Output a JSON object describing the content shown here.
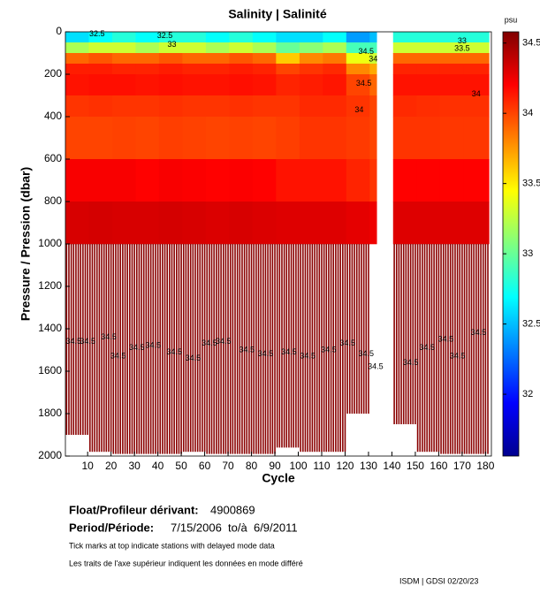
{
  "chart_data": {
    "type": "section",
    "title": "Salinity | Salinité",
    "xlabel": "Cycle",
    "ylabel": "Pressure / Pression (dbar)",
    "colorbar_label": "psu",
    "xlim": [
      0.5,
      182.5
    ],
    "xticks": [
      10,
      20,
      30,
      40,
      50,
      60,
      70,
      80,
      90,
      100,
      110,
      120,
      130,
      140,
      150,
      160,
      170,
      180
    ],
    "ylim": [
      0,
      2000
    ],
    "yticks": [
      0,
      200,
      400,
      600,
      800,
      1000,
      1200,
      1400,
      1600,
      1800,
      2000
    ],
    "clim": [
      31.56,
      34.58
    ],
    "cticks": [
      32,
      32.5,
      33,
      33.5,
      34,
      34.5
    ],
    "colormap": "jet",
    "deep_salinity": 34.55,
    "pressure_edges": [
      0,
      50,
      100,
      150,
      200,
      300,
      400,
      600,
      800,
      1000
    ],
    "columns": [
      {
        "cycles": [
          1,
          10
        ],
        "salinity": [
          32.6,
          33.2,
          33.9,
          34.12,
          34.15,
          34.05,
          34.0,
          34.22,
          34.32
        ],
        "max_pressure": 1900
      },
      {
        "cycles": [
          11,
          20
        ],
        "salinity": [
          32.7,
          33.3,
          33.95,
          34.12,
          34.16,
          34.06,
          34.0,
          34.22,
          34.33
        ],
        "max_pressure": 1980
      },
      {
        "cycles": [
          21,
          30
        ],
        "salinity": [
          32.8,
          33.3,
          33.9,
          34.1,
          34.16,
          34.05,
          34.01,
          34.22,
          34.32
        ],
        "max_pressure": 1990
      },
      {
        "cycles": [
          31,
          40
        ],
        "salinity": [
          32.7,
          33.2,
          33.9,
          34.1,
          34.15,
          34.05,
          34.0,
          34.2,
          34.32
        ],
        "max_pressure": 1990
      },
      {
        "cycles": [
          41,
          50
        ],
        "salinity": [
          32.8,
          33.3,
          33.95,
          34.12,
          34.16,
          34.06,
          34.02,
          34.22,
          34.33
        ],
        "max_pressure": 1990
      },
      {
        "cycles": [
          51,
          60
        ],
        "salinity": [
          32.8,
          33.3,
          33.9,
          34.1,
          34.15,
          34.05,
          34.01,
          34.21,
          34.32
        ],
        "max_pressure": 1980
      },
      {
        "cycles": [
          61,
          70
        ],
        "salinity": [
          32.7,
          33.2,
          33.9,
          34.1,
          34.15,
          34.05,
          34.0,
          34.2,
          34.31
        ],
        "max_pressure": 1990
      },
      {
        "cycles": [
          71,
          80
        ],
        "salinity": [
          32.8,
          33.3,
          33.95,
          34.12,
          34.16,
          34.06,
          34.01,
          34.21,
          34.32
        ],
        "max_pressure": 1990
      },
      {
        "cycles": [
          81,
          90
        ],
        "salinity": [
          32.7,
          33.2,
          33.9,
          34.1,
          34.15,
          34.05,
          34.0,
          34.2,
          34.31
        ],
        "max_pressure": 1990
      },
      {
        "cycles": [
          91,
          100
        ],
        "salinity": [
          32.6,
          33.0,
          33.6,
          34.0,
          34.1,
          34.05,
          34.02,
          34.15,
          34.3
        ],
        "max_pressure": 1960
      },
      {
        "cycles": [
          101,
          110
        ],
        "salinity": [
          32.6,
          33.1,
          33.8,
          34.05,
          34.12,
          34.08,
          34.05,
          34.15,
          34.3
        ],
        "max_pressure": 1980
      },
      {
        "cycles": [
          111,
          120
        ],
        "salinity": [
          32.7,
          33.2,
          33.85,
          34.08,
          34.14,
          34.08,
          34.05,
          34.15,
          34.3
        ],
        "max_pressure": 1980
      },
      {
        "cycles": [
          121,
          130
        ],
        "salinity": [
          32.4,
          32.9,
          33.4,
          33.8,
          34.0,
          34.05,
          34.03,
          34.1,
          34.28
        ],
        "max_pressure": 1800
      },
      {
        "cycles": [
          131,
          133
        ],
        "salinity": [
          32.5,
          32.9,
          33.3,
          33.7,
          33.9,
          34.0,
          34.0,
          34.05,
          34.25
        ],
        "max_pressure": null
      },
      {
        "cycles": [
          141,
          150
        ],
        "salinity": [
          32.8,
          33.3,
          33.9,
          34.1,
          34.15,
          34.08,
          34.05,
          34.2,
          34.3
        ],
        "max_pressure": 1850
      },
      {
        "cycles": [
          151,
          160
        ],
        "salinity": [
          32.8,
          33.3,
          33.9,
          34.1,
          34.15,
          34.07,
          34.05,
          34.2,
          34.3
        ],
        "max_pressure": 1980
      },
      {
        "cycles": [
          161,
          170
        ],
        "salinity": [
          32.8,
          33.3,
          33.9,
          34.1,
          34.15,
          34.06,
          34.04,
          34.2,
          34.3
        ],
        "max_pressure": 1990
      },
      {
        "cycles": [
          171,
          181
        ],
        "salinity": [
          32.8,
          33.3,
          33.9,
          34.1,
          34.15,
          34.06,
          34.04,
          34.2,
          34.3
        ],
        "max_pressure": 1990
      }
    ],
    "contour_labels": [
      {
        "text": "32.5",
        "cycle": 14,
        "pressure": 10
      },
      {
        "text": "32.5",
        "cycle": 43,
        "pressure": 20
      },
      {
        "text": "33",
        "cycle": 46,
        "pressure": 60
      },
      {
        "text": "33",
        "cycle": 170,
        "pressure": 45
      },
      {
        "text": "33.5",
        "cycle": 170,
        "pressure": 80
      },
      {
        "text": "34.5",
        "cycle": 129,
        "pressure": 95
      },
      {
        "text": "34",
        "cycle": 132,
        "pressure": 130
      },
      {
        "text": "34.5",
        "cycle": 128,
        "pressure": 245
      },
      {
        "text": "34",
        "cycle": 126,
        "pressure": 370
      },
      {
        "text": "34",
        "cycle": 176,
        "pressure": 295
      },
      {
        "text": "34.5",
        "cycle": 4,
        "pressure": 1460
      },
      {
        "text": "34.5",
        "cycle": 10,
        "pressure": 1460
      },
      {
        "text": "34.5",
        "cycle": 19,
        "pressure": 1440
      },
      {
        "text": "34.5",
        "cycle": 23,
        "pressure": 1530
      },
      {
        "text": "34.5",
        "cycle": 31,
        "pressure": 1490
      },
      {
        "text": "34.5",
        "cycle": 38,
        "pressure": 1480
      },
      {
        "text": "34.5",
        "cycle": 47,
        "pressure": 1510
      },
      {
        "text": "34.5",
        "cycle": 55,
        "pressure": 1540
      },
      {
        "text": "34.5",
        "cycle": 62,
        "pressure": 1470
      },
      {
        "text": "34.5",
        "cycle": 68,
        "pressure": 1460
      },
      {
        "text": "34.5",
        "cycle": 78,
        "pressure": 1500
      },
      {
        "text": "34.5",
        "cycle": 86,
        "pressure": 1520
      },
      {
        "text": "34.5",
        "cycle": 96,
        "pressure": 1510
      },
      {
        "text": "34.5",
        "cycle": 104,
        "pressure": 1530
      },
      {
        "text": "34.5",
        "cycle": 113,
        "pressure": 1500
      },
      {
        "text": "34.5",
        "cycle": 121,
        "pressure": 1470
      },
      {
        "text": "34.5",
        "cycle": 129,
        "pressure": 1520
      },
      {
        "text": "34.5",
        "cycle": 133,
        "pressure": 1580
      },
      {
        "text": "34.5",
        "cycle": 148,
        "pressure": 1560
      },
      {
        "text": "34.5",
        "cycle": 155,
        "pressure": 1490
      },
      {
        "text": "34.5",
        "cycle": 163,
        "pressure": 1450
      },
      {
        "text": "34.5",
        "cycle": 168,
        "pressure": 1530
      },
      {
        "text": "34.5",
        "cycle": 177,
        "pressure": 1420
      }
    ]
  },
  "footer": {
    "float_label": "Float/Profileur dérivant:",
    "float_id": "4900869",
    "period_label": "Period/Période:",
    "period": "7/15/2006  to/à  6/9/2011",
    "note_en": "Tick marks at top indicate stations with delayed mode data",
    "note_fr": "Les traits de l'axe supérieur indiquent les données en mode différé",
    "credit": "ISDM | GDSI 02/20/23"
  }
}
